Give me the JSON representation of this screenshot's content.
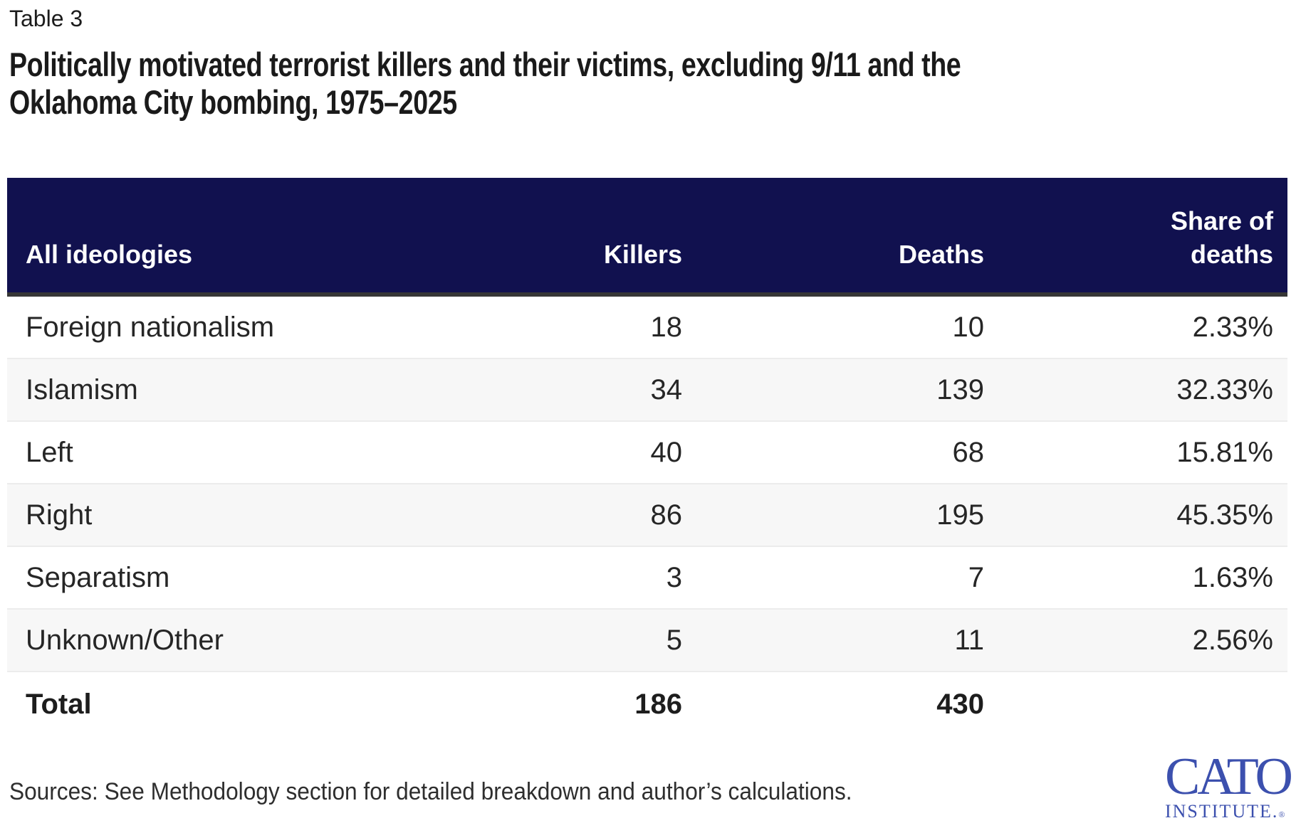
{
  "header": {
    "table_label": "Table 3",
    "title_line1": "Politically motivated terrorist killers and their victims, excluding 9/11 and the",
    "title_line2": "Oklahoma City bombing, 1975–2025"
  },
  "chart_data": {
    "type": "table",
    "title": "Politically motivated terrorist killers and their victims, excluding 9/11 and the Oklahoma City bombing, 1975–2025",
    "columns": [
      "All ideologies",
      "Killers",
      "Deaths",
      "Share of deaths"
    ],
    "rows": [
      [
        "Foreign nationalism",
        18,
        10,
        "2.33%"
      ],
      [
        "Islamism",
        34,
        139,
        "32.33%"
      ],
      [
        "Left",
        40,
        68,
        "15.81%"
      ],
      [
        "Right",
        86,
        195,
        "45.35%"
      ],
      [
        "Separatism",
        3,
        7,
        "1.63%"
      ],
      [
        "Unknown/Other",
        5,
        11,
        "2.56%"
      ],
      [
        "Total",
        186,
        430,
        ""
      ]
    ],
    "notes": "Total row shows no share-of-deaths value"
  },
  "footer": {
    "sources": "Sources: See Methodology section for detailed breakdown and author’s calculations."
  },
  "logo": {
    "wordmark": "CATO",
    "subtitle": "INSTITUTE.",
    "registered": "®"
  },
  "colors": {
    "header_bg": "#11114f",
    "header_text": "#ffffff",
    "header_bottom_border": "#363636",
    "stripe_bg": "#f7f7f7",
    "stripe_border": "#ececec",
    "body_text": "#262626",
    "logo_blue": "#3c50ae"
  }
}
